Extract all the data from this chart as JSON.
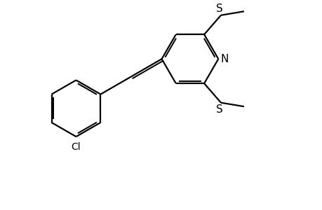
{
  "background_color": "#ffffff",
  "bond_color": "#000000",
  "atom_color": "#000000",
  "line_width": 1.6,
  "figsize": [
    4.6,
    3.0
  ],
  "dpi": 100,
  "xlim": [
    0,
    10
  ],
  "ylim": [
    0,
    6.5
  ]
}
